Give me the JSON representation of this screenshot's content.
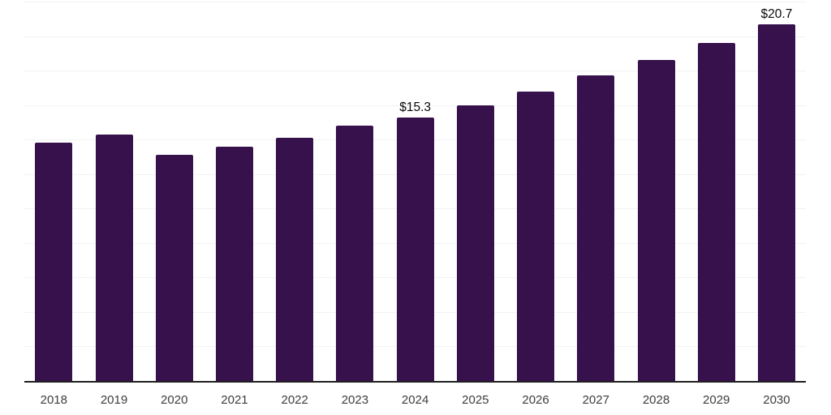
{
  "chart_data": {
    "type": "bar",
    "title": "",
    "xlabel": "",
    "ylabel": "",
    "categories": [
      "2018",
      "2019",
      "2020",
      "2021",
      "2022",
      "2023",
      "2024",
      "2025",
      "2026",
      "2027",
      "2028",
      "2029",
      "2030"
    ],
    "values": [
      13.8,
      14.3,
      13.1,
      13.6,
      14.1,
      14.8,
      15.3,
      16.0,
      16.8,
      17.7,
      18.6,
      19.6,
      20.7
    ],
    "data_labels": [
      "",
      "",
      "",
      "",
      "",
      "",
      "$15.3",
      "",
      "",
      "",
      "",
      "",
      "$20.7"
    ],
    "ylim": [
      0,
      22
    ],
    "gridline_step": 2,
    "grid": "horizontal",
    "legend": "none",
    "colors": {
      "bar": "#37114c",
      "axis_line": "#1f1f1f",
      "gridline": "#f2f2f2",
      "data_label": "#0a0a0a",
      "tick_label": "#3d3d3d",
      "background": "#ffffff"
    }
  }
}
